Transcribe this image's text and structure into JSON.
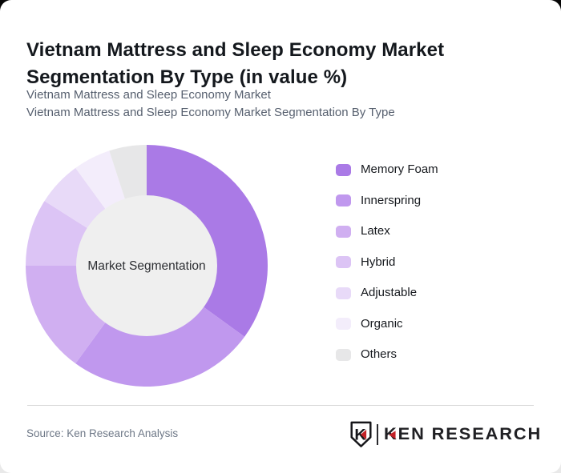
{
  "header": {
    "title": "Vietnam Mattress and Sleep Economy Market Segmentation By Type (in value %)",
    "subtitles": [
      "Vietnam Mattress and Sleep Economy Market",
      "Vietnam Mattress and Sleep Economy Market Segmentation By Type"
    ]
  },
  "chart_data": {
    "type": "pie",
    "style": "donut",
    "title": "Vietnam Mattress and Sleep Economy Market Segmentation By Type (in value %)",
    "center_label": "Market Segmentation",
    "unit": "% of value (approximate, read from arc angles; no numeric labels shown)",
    "categories": [
      "Memory Foam",
      "Innerspring",
      "Latex",
      "Hybrid",
      "Adjustable",
      "Organic",
      "Others"
    ],
    "values": [
      35,
      25,
      15,
      9,
      6,
      5,
      5
    ],
    "colors": [
      "#aa7ae6",
      "#c098ee",
      "#d0aff1",
      "#dcc4f5",
      "#e8daf8",
      "#f3edfb",
      "#e7e7e8"
    ],
    "start_angle_deg": 0,
    "direction": "clockwise",
    "legend_position": "right",
    "center_circle_color": "#efefef",
    "outer_radius_px": 151,
    "inner_radius_px": 88
  },
  "footer": {
    "source": "Source: Ken Research Analysis",
    "logo_emblem_letter": "K",
    "logo_text": "KEN RESEARCH"
  }
}
